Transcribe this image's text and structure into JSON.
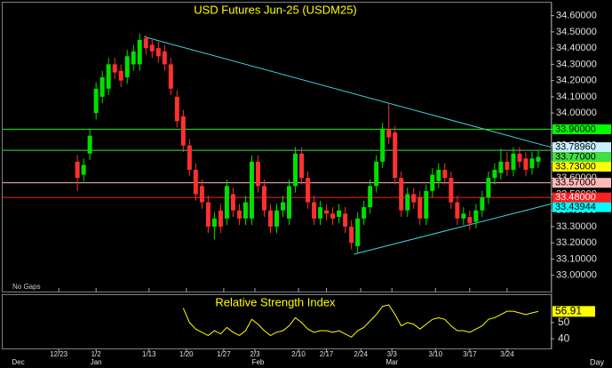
{
  "chart_data": {
    "type": "candlestick",
    "title": "USD Futures Jun-25 (USDM25)",
    "note": "No Gaps",
    "x_unit": "Day",
    "x": [
      0,
      1,
      2,
      3,
      4,
      5,
      6,
      7,
      8,
      9,
      10,
      11,
      12,
      13,
      14,
      15,
      16,
      17,
      18,
      19,
      20,
      21,
      22,
      23,
      24,
      25,
      26,
      27,
      28,
      29,
      30,
      31,
      32,
      33,
      34,
      35,
      36,
      37,
      38,
      39,
      40,
      41,
      42,
      43,
      44,
      45,
      46,
      47,
      48,
      49,
      50,
      51,
      52,
      53,
      54,
      55,
      56,
      57,
      58,
      59,
      60,
      61,
      62,
      63,
      64,
      65,
      66,
      67,
      68,
      69,
      70,
      71,
      72,
      73,
      74
    ],
    "open": [
      33.7,
      33.62,
      33.75,
      34.0,
      34.1,
      34.15,
      34.3,
      34.26,
      34.22,
      34.3,
      34.3,
      34.46,
      34.42,
      34.4,
      34.38,
      34.3,
      34.1,
      33.98,
      33.8,
      33.65,
      33.55,
      33.45,
      33.3,
      33.4,
      33.35,
      33.5,
      33.4,
      33.35,
      33.35,
      33.7,
      33.55,
      33.4,
      33.3,
      33.4,
      33.35,
      33.55,
      33.75,
      33.6,
      33.45,
      33.35,
      33.4,
      33.38,
      33.36,
      33.38,
      33.3,
      33.18,
      33.35,
      33.42,
      33.55,
      33.7,
      33.9,
      33.88,
      33.6,
      33.4,
      33.5,
      33.48,
      33.35,
      33.52,
      33.58,
      33.65,
      33.6,
      33.45,
      33.35,
      33.36,
      33.33,
      33.4,
      33.48,
      33.6,
      33.63,
      33.7,
      33.65,
      33.75,
      33.72,
      33.66,
      33.7
    ],
    "high": [
      33.74,
      33.72,
      33.9,
      34.19,
      34.26,
      34.34,
      34.34,
      34.3,
      34.39,
      34.42,
      34.49,
      34.48,
      34.45,
      34.44,
      34.42,
      34.34,
      34.14,
      34.02,
      33.84,
      33.69,
      33.59,
      33.49,
      33.39,
      33.44,
      33.59,
      33.54,
      33.44,
      33.49,
      33.74,
      33.74,
      33.59,
      33.44,
      33.44,
      33.49,
      33.59,
      33.79,
      33.79,
      33.64,
      33.49,
      33.46,
      33.44,
      33.42,
      33.44,
      33.42,
      33.34,
      33.39,
      33.46,
      33.59,
      33.74,
      33.94,
      34.06,
      33.92,
      33.64,
      33.54,
      33.54,
      33.52,
      33.56,
      33.66,
      33.69,
      33.69,
      33.64,
      33.49,
      33.42,
      33.4,
      33.44,
      33.52,
      33.64,
      33.69,
      33.78,
      33.76,
      33.79,
      33.79,
      33.76,
      33.76,
      33.77
    ],
    "low": [
      33.52,
      33.58,
      33.71,
      33.96,
      34.06,
      34.11,
      34.21,
      34.16,
      34.18,
      34.26,
      34.26,
      34.36,
      34.34,
      34.31,
      34.26,
      34.11,
      33.91,
      33.76,
      33.61,
      33.46,
      33.41,
      33.26,
      33.22,
      33.26,
      33.31,
      33.36,
      33.31,
      33.31,
      33.31,
      33.51,
      33.36,
      33.26,
      33.26,
      33.36,
      33.31,
      33.51,
      33.56,
      33.41,
      33.31,
      33.31,
      33.34,
      33.31,
      33.32,
      33.26,
      33.16,
      33.14,
      33.31,
      33.38,
      33.51,
      33.66,
      33.81,
      33.56,
      33.36,
      33.36,
      33.41,
      33.31,
      33.31,
      33.48,
      33.54,
      33.56,
      33.41,
      33.31,
      33.31,
      33.28,
      33.29,
      33.36,
      33.44,
      33.56,
      33.59,
      33.61,
      33.61,
      33.66,
      33.61,
      33.62,
      33.66
    ],
    "close": [
      33.6,
      33.68,
      33.86,
      34.15,
      34.22,
      34.3,
      34.25,
      34.2,
      34.35,
      34.38,
      34.45,
      34.4,
      34.38,
      34.35,
      34.3,
      34.15,
      33.95,
      33.8,
      33.65,
      33.5,
      33.45,
      33.3,
      33.35,
      33.3,
      33.55,
      33.4,
      33.35,
      33.45,
      33.7,
      33.55,
      33.4,
      33.3,
      33.4,
      33.45,
      33.55,
      33.75,
      33.6,
      33.45,
      33.35,
      33.42,
      33.38,
      33.35,
      33.4,
      33.3,
      33.2,
      33.35,
      33.42,
      33.55,
      33.7,
      33.9,
      33.85,
      33.6,
      33.4,
      33.5,
      33.45,
      33.35,
      33.52,
      33.62,
      33.65,
      33.6,
      33.45,
      33.35,
      33.38,
      33.32,
      33.4,
      33.48,
      33.6,
      33.65,
      33.7,
      33.65,
      33.75,
      33.7,
      33.65,
      33.72,
      33.73
    ],
    "up_color": "#00e000",
    "down_color": "#ff3030",
    "xlim": [
      -12,
      76
    ],
    "ylim": [
      32.9,
      34.68
    ],
    "xticks": [
      {
        "value": -3,
        "label": "12/23"
      },
      {
        "value": 3,
        "label": "1/2"
      },
      {
        "value": 11.5,
        "label": "1/13"
      },
      {
        "value": 17.5,
        "label": "1/20"
      },
      {
        "value": 23.5,
        "label": "1/27"
      },
      {
        "value": 28.5,
        "label": "2/3"
      },
      {
        "value": 35.5,
        "label": "2/10"
      },
      {
        "value": 40,
        "label": "2/17"
      },
      {
        "value": 45.5,
        "label": "2/24"
      },
      {
        "value": 50.5,
        "label": "3/3"
      },
      {
        "value": 57.5,
        "label": "3/10"
      },
      {
        "value": 63,
        "label": "3/17"
      },
      {
        "value": 69,
        "label": "3/24"
      }
    ],
    "months": [
      {
        "value": -9.5,
        "label": "Dec"
      },
      {
        "value": 3,
        "label": "Jan"
      },
      {
        "value": 29,
        "label": "Feb"
      },
      {
        "value": 50.5,
        "label": "Mar"
      }
    ],
    "yticks": [
      {
        "value": 33.0,
        "label": "33.00000"
      },
      {
        "value": 33.1,
        "label": "33.10000"
      },
      {
        "value": 33.2,
        "label": "33.20000"
      },
      {
        "value": 33.3,
        "label": "33.30000"
      },
      {
        "value": 33.4,
        "label": "33.40000"
      },
      {
        "value": 33.5,
        "label": "33.50000"
      },
      {
        "value": 33.6,
        "label": "33.60000"
      },
      {
        "value": 33.7,
        "label": "33.70000"
      },
      {
        "value": 33.8,
        "label": "33.80000"
      },
      {
        "value": 33.9,
        "label": "33.90000"
      },
      {
        "value": 34.0,
        "label": "34.00000"
      },
      {
        "value": 34.1,
        "label": "34.10000"
      },
      {
        "value": 34.2,
        "label": "34.20000"
      },
      {
        "value": 34.3,
        "label": "34.30000"
      },
      {
        "value": 34.4,
        "label": "34.40000"
      },
      {
        "value": 34.5,
        "label": "34.50000"
      },
      {
        "value": 34.6,
        "label": "34.60000"
      }
    ],
    "levels": [
      {
        "value": 33.9,
        "label": "33.90000",
        "color": "#00ff00",
        "line": true
      },
      {
        "value": 33.7896,
        "label": "33.78960",
        "color": "#c8f0ff",
        "line": false
      },
      {
        "value": 33.77,
        "label": "33.77000",
        "color": "#40e040",
        "line": true
      },
      {
        "value": 33.73,
        "label": "33.73000",
        "color": "#ffff00",
        "line": false
      },
      {
        "value": 33.57,
        "label": "33.57000",
        "color": "#ffb8b8",
        "line": true
      },
      {
        "value": 33.48,
        "label": "33.48000",
        "color": "#ff2020",
        "line": true
      },
      {
        "value": 33.43944,
        "label": "33.43944",
        "color": "#00ffff",
        "line": false
      }
    ],
    "trendlines": [
      {
        "x": [
          10.7,
          76
        ],
        "y": [
          34.47,
          33.7896
        ],
        "color": "#40d0e0"
      },
      {
        "x": [
          44.4,
          76
        ],
        "y": [
          33.13,
          33.43944
        ],
        "color": "#40d0e0"
      }
    ],
    "rsi": {
      "title": "Relative Strength Index",
      "color": "#ffff00",
      "ylim": [
        34,
        67
      ],
      "yticks": [
        40,
        50
      ],
      "values": [
        null,
        null,
        null,
        null,
        null,
        null,
        null,
        null,
        null,
        null,
        null,
        null,
        null,
        null,
        null,
        null,
        null,
        59,
        50,
        46,
        44,
        42,
        45,
        43,
        47,
        44,
        42,
        45,
        52,
        49,
        45,
        42,
        44,
        45,
        48,
        53,
        50,
        46,
        44,
        45,
        45,
        44,
        45,
        43,
        41,
        45,
        47,
        51,
        55,
        60,
        61,
        55,
        48,
        50,
        49,
        46,
        49,
        52,
        53,
        52,
        48,
        45,
        45,
        44,
        46,
        48,
        52,
        53,
        55,
        57,
        57,
        56,
        55,
        56,
        56.91
      ]
    }
  }
}
